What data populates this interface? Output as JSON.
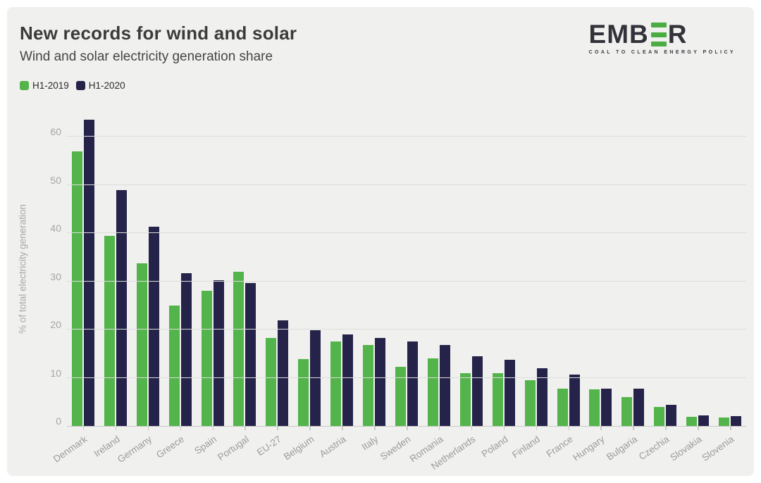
{
  "header": {
    "title": "New records for wind and solar",
    "subtitle": "Wind and solar electricity generation share"
  },
  "logo": {
    "text_start": "EMB",
    "text_end": "R",
    "tagline": "COAL TO CLEAN ENERGY POLICY",
    "bar_color": "#4aad43",
    "text_color": "#32323a"
  },
  "legend": [
    {
      "label": "H1-2019",
      "color": "#52b44a"
    },
    {
      "label": "H1-2020",
      "color": "#252349"
    }
  ],
  "chart_data": {
    "type": "bar",
    "title": "New records for wind and solar",
    "subtitle": "Wind and solar electricity generation share",
    "xlabel": "",
    "ylabel": "% of total electricity generation",
    "ylim": [
      0,
      65
    ],
    "yticks": [
      0,
      10,
      20,
      30,
      40,
      50,
      60
    ],
    "grid": true,
    "legend_position": "top-left",
    "categories": [
      "Denmark",
      "Ireland",
      "Germany",
      "Greece",
      "Spain",
      "Portugal",
      "EU-27",
      "Belgium",
      "Austria",
      "Italy",
      "Sweden",
      "Romania",
      "Netherlands",
      "Poland",
      "Finland",
      "France",
      "Hungary",
      "Bulgaria",
      "Czechia",
      "Slovakia",
      "Slovenia"
    ],
    "series": [
      {
        "name": "H1-2019",
        "color": "#52b44a",
        "values": [
          57.0,
          39.4,
          33.7,
          25.0,
          28.1,
          32.0,
          18.2,
          13.9,
          17.6,
          16.8,
          12.3,
          14.1,
          11.0,
          10.9,
          9.5,
          7.8,
          7.6,
          6.0,
          4.0,
          1.9,
          1.7
        ]
      },
      {
        "name": "H1-2020",
        "color": "#252349",
        "values": [
          63.6,
          48.9,
          41.4,
          31.7,
          30.2,
          29.6,
          21.9,
          19.9,
          19.0,
          18.2,
          17.6,
          16.8,
          14.4,
          13.7,
          12.0,
          10.6,
          7.8,
          7.7,
          4.4,
          2.2,
          2.1
        ]
      }
    ],
    "colors": {
      "background": "#f0f0ee",
      "gridline": "#dcdcda",
      "axis_text": "#a5a5a5"
    }
  }
}
